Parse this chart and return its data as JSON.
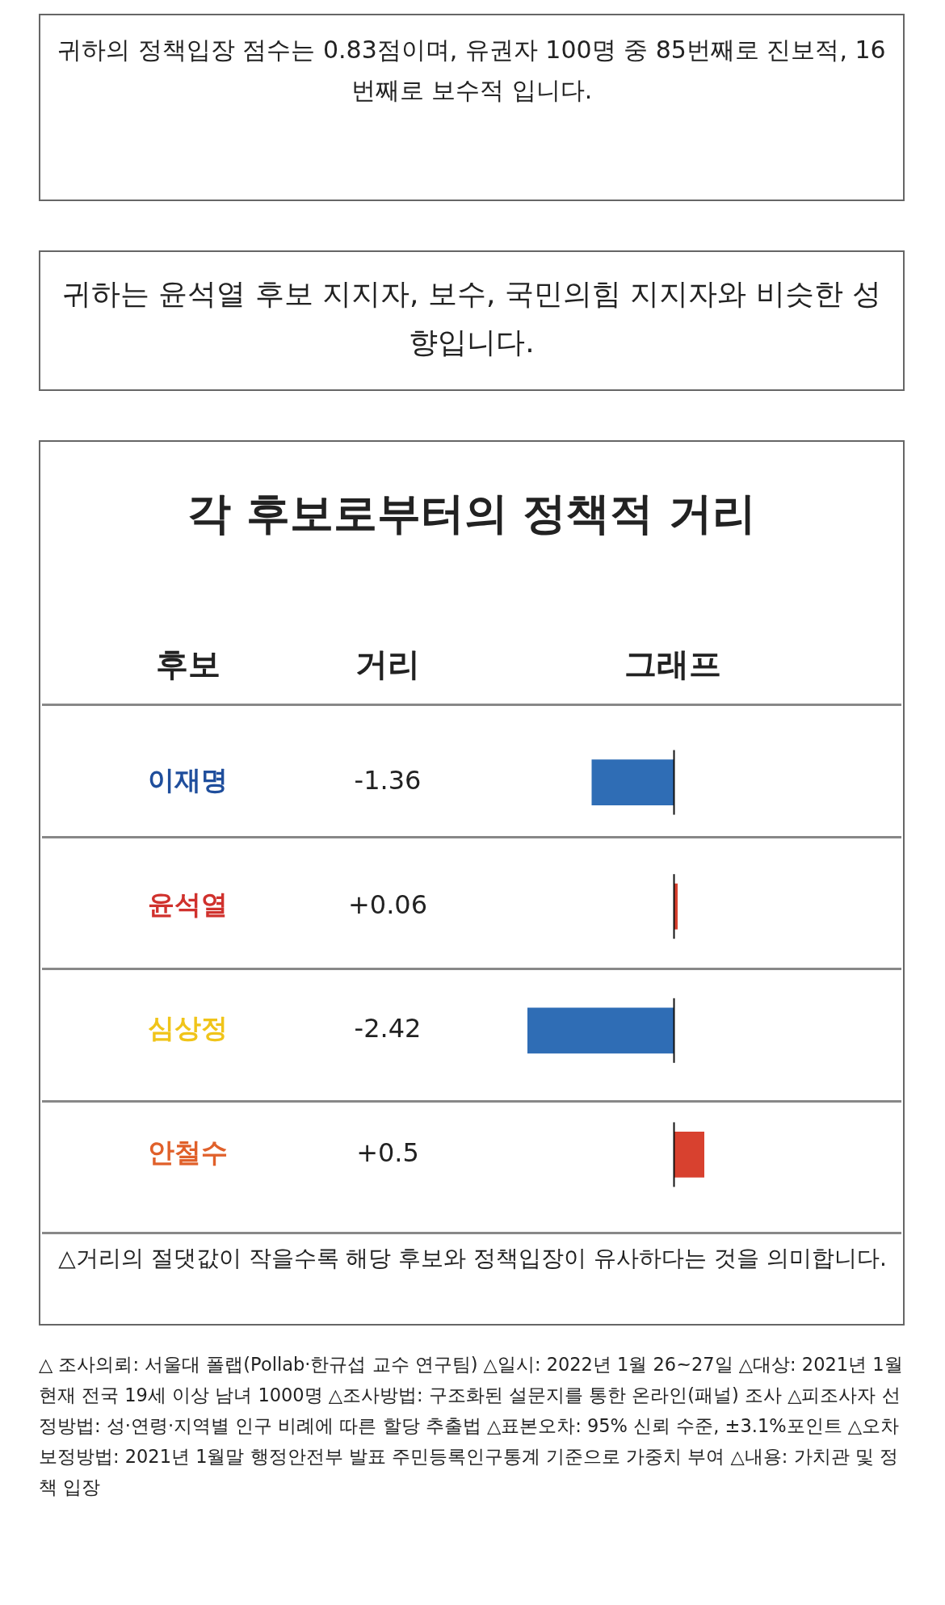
{
  "chart_data": {
    "type": "bar",
    "orientation": "horizontal",
    "title": "각 후보로부터의 정책적 거리",
    "categories": [
      "이재명",
      "윤석열",
      "심상정",
      "안철수"
    ],
    "values": [
      -1.36,
      0.06,
      -2.42,
      0.5
    ],
    "colors": [
      "#2f6db5",
      "#d8412f",
      "#2f6db5",
      "#d8412f"
    ],
    "value_labels": [
      "-1.36",
      "+0.06",
      "-2.42",
      "+0.5"
    ],
    "legend": false,
    "tick_labels": "y",
    "ref_lines": [
      {
        "axis": "x",
        "value": 0,
        "color": "#111111"
      }
    ],
    "annotations": [
      "귀하의 정책입장 점수는 0.83점이며, 유권자 100명 중 85번째로 진보적, 16번째로 보수적 입니다.",
      "귀하는 윤석열 후보 지지자, 보수, 국민의힘 지지자와 비슷한 성향입니다.",
      "후보",
      "거리",
      "그래프",
      "△거리의 절댓값이 작을수록 해당 후보와 정책입장이 유사하다는 것을 의미합니다.",
      "△ 조사의뢰: 서울대 폴랩(Pollab·한규섭 교수 연구팀) △일시: 2022년 1월 26~27일 △대상: 2021년 1월 현재 전국 19세 이상 남녀 1000명 △조사방법: 구조화된 설문지를 통한 온라인(패널) 조사 △피조사자 선정방법: 성·연령·지역별 인구 비례에 따른 할당 추출법 △표본오차: 95% 신뢰 수준, ±3.1%포인트 △오차 보정방법: 2021년 1월말 행정안전부 발표 주민등록인구통계 기준으로 가중치 부여 △내용: 가치관 및 정책 입장"
    ]
  }
}
